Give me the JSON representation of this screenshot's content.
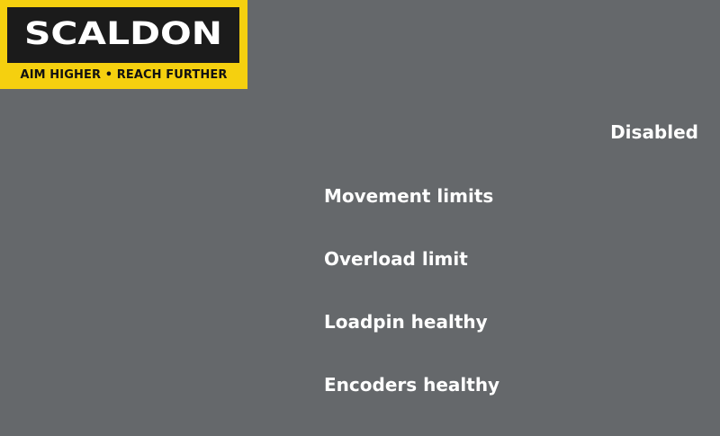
{
  "logo": {
    "wordmark": "SCALDON",
    "tagline": "AIM HIGHER • REACH FURTHER",
    "colors": {
      "frame": "#f5d00f",
      "inner": "#1b1b1b",
      "wordmark": "#ffffff"
    }
  },
  "status": {
    "text": "Disabled"
  },
  "checks": [
    {
      "label": "Movement limits"
    },
    {
      "label": "Overload limit"
    },
    {
      "label": "Loadpin healthy"
    },
    {
      "label": "Encoders healthy"
    }
  ],
  "colors": {
    "background": "#65686b",
    "text": "#ffffff"
  }
}
